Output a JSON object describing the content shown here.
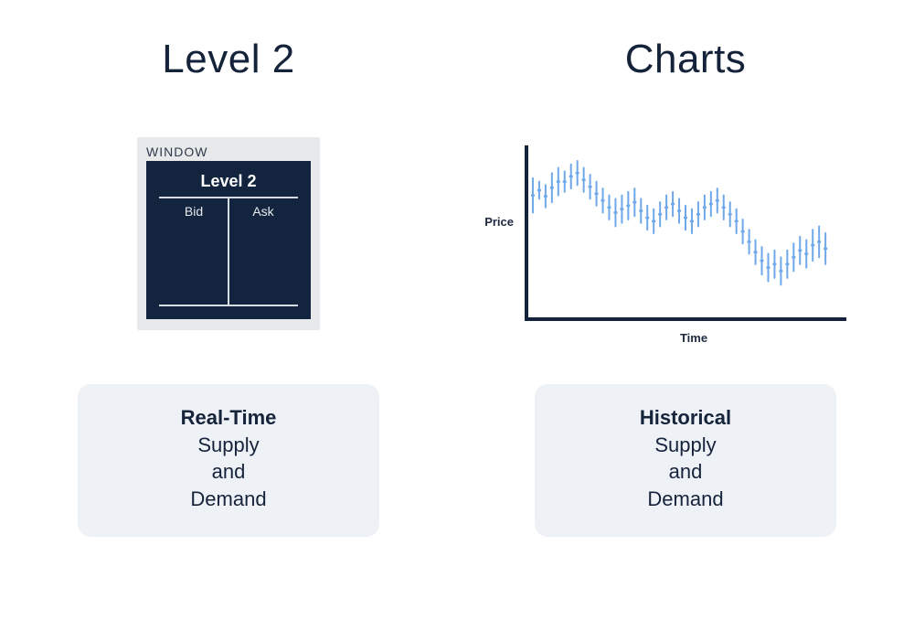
{
  "colors": {
    "text_dark": "#14223a",
    "panel_bg": "#e7e9ea",
    "window_bg": "#13253e",
    "window_line": "#d7dde3",
    "caption_bg": "#eef1f6",
    "axis_color": "#14223a",
    "candle_color": "#6fa8e8"
  },
  "left": {
    "title": "Level 2",
    "window": {
      "outer_label": "WINDOW",
      "inner_title": "Level 2",
      "columns": {
        "bid": "Bid",
        "ask": "Ask"
      }
    },
    "caption": {
      "lines": [
        {
          "text": "Real-Time",
          "bold": true
        },
        {
          "text": "Supply",
          "bold": false
        },
        {
          "text": "and",
          "bold": false
        },
        {
          "text": "Demand",
          "bold": false
        }
      ]
    }
  },
  "right": {
    "title": "Charts",
    "chart": {
      "type": "candlestick",
      "y_label": "Price",
      "x_label": "Time",
      "xlim": [
        0,
        100
      ],
      "ylim": [
        0,
        100
      ],
      "axis_width": 4,
      "candle_width": 2.0,
      "candles": [
        {
          "x": 2,
          "low": 62,
          "high": 82
        },
        {
          "x": 4,
          "low": 70,
          "high": 80
        },
        {
          "x": 6,
          "low": 65,
          "high": 78
        },
        {
          "x": 8,
          "low": 68,
          "high": 85
        },
        {
          "x": 10,
          "low": 72,
          "high": 88
        },
        {
          "x": 12,
          "low": 74,
          "high": 86
        },
        {
          "x": 14,
          "low": 76,
          "high": 90
        },
        {
          "x": 16,
          "low": 78,
          "high": 92
        },
        {
          "x": 18,
          "low": 74,
          "high": 88
        },
        {
          "x": 20,
          "low": 70,
          "high": 84
        },
        {
          "x": 22,
          "low": 66,
          "high": 80
        },
        {
          "x": 24,
          "low": 62,
          "high": 76
        },
        {
          "x": 26,
          "low": 58,
          "high": 72
        },
        {
          "x": 28,
          "low": 54,
          "high": 70
        },
        {
          "x": 30,
          "low": 56,
          "high": 72
        },
        {
          "x": 32,
          "low": 58,
          "high": 74
        },
        {
          "x": 34,
          "low": 60,
          "high": 76
        },
        {
          "x": 36,
          "low": 56,
          "high": 70
        },
        {
          "x": 38,
          "low": 52,
          "high": 66
        },
        {
          "x": 40,
          "low": 50,
          "high": 64
        },
        {
          "x": 42,
          "low": 54,
          "high": 68
        },
        {
          "x": 44,
          "low": 58,
          "high": 72
        },
        {
          "x": 46,
          "low": 60,
          "high": 74
        },
        {
          "x": 48,
          "low": 56,
          "high": 70
        },
        {
          "x": 50,
          "low": 52,
          "high": 66
        },
        {
          "x": 52,
          "low": 50,
          "high": 64
        },
        {
          "x": 54,
          "low": 54,
          "high": 68
        },
        {
          "x": 56,
          "low": 58,
          "high": 72
        },
        {
          "x": 58,
          "low": 60,
          "high": 74
        },
        {
          "x": 60,
          "low": 62,
          "high": 76
        },
        {
          "x": 62,
          "low": 58,
          "high": 72
        },
        {
          "x": 64,
          "low": 54,
          "high": 68
        },
        {
          "x": 66,
          "low": 50,
          "high": 64
        },
        {
          "x": 68,
          "low": 44,
          "high": 58
        },
        {
          "x": 70,
          "low": 38,
          "high": 52
        },
        {
          "x": 72,
          "low": 32,
          "high": 46
        },
        {
          "x": 74,
          "low": 26,
          "high": 42
        },
        {
          "x": 76,
          "low": 22,
          "high": 38
        },
        {
          "x": 78,
          "low": 24,
          "high": 40
        },
        {
          "x": 80,
          "low": 20,
          "high": 36
        },
        {
          "x": 82,
          "low": 24,
          "high": 40
        },
        {
          "x": 84,
          "low": 28,
          "high": 44
        },
        {
          "x": 86,
          "low": 32,
          "high": 48
        },
        {
          "x": 88,
          "low": 30,
          "high": 46
        },
        {
          "x": 90,
          "low": 34,
          "high": 52
        },
        {
          "x": 92,
          "low": 36,
          "high": 54
        },
        {
          "x": 94,
          "low": 32,
          "high": 50
        }
      ]
    },
    "caption": {
      "lines": [
        {
          "text": "Historical",
          "bold": true
        },
        {
          "text": "Supply",
          "bold": false
        },
        {
          "text": "and",
          "bold": false
        },
        {
          "text": "Demand",
          "bold": false
        }
      ]
    }
  }
}
